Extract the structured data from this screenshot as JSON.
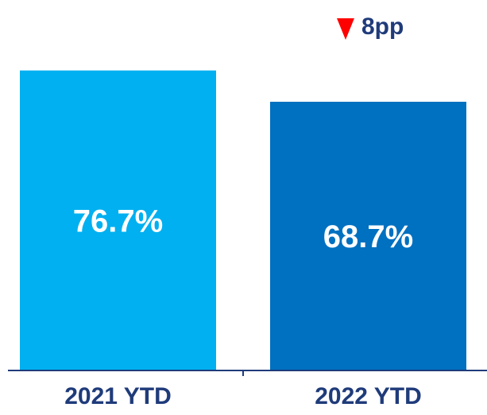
{
  "chart_data": {
    "type": "bar",
    "categories": [
      "2021 YTD",
      "2022 YTD"
    ],
    "values": [
      76.7,
      68.7
    ],
    "data_labels": [
      "76.7%",
      "68.7%"
    ],
    "ylim": [
      0,
      100
    ],
    "grid": false,
    "colors": [
      "#00b0f0",
      "#0070c0"
    ],
    "annotation": {
      "text": "8pp",
      "direction": "down",
      "color": "#ff0000"
    }
  },
  "colors": {
    "axis": "#1f3b7a",
    "label_text": "#ffffff",
    "tick_text": "#1f3b7a"
  }
}
